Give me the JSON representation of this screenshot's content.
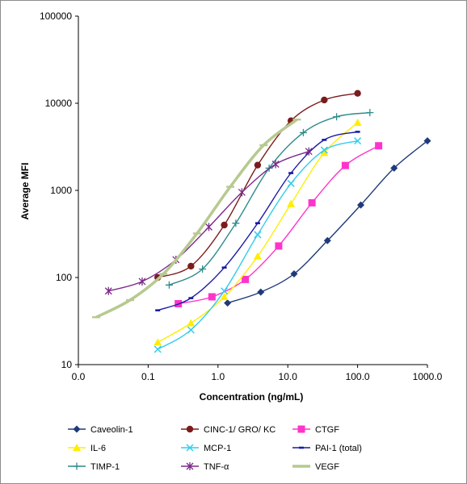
{
  "chart_data": {
    "type": "line",
    "xlabel": "Concentration (ng/mL)",
    "ylabel": "Average MFI",
    "x_scale": "log",
    "y_scale": "log",
    "xlim": [
      0.01,
      1000
    ],
    "ylim": [
      10,
      100000
    ],
    "x_ticks": [
      "0.0",
      "0.1",
      "1.0",
      "10.0",
      "100.0",
      "1000.0"
    ],
    "y_ticks": [
      "10",
      "100",
      "1000",
      "10000",
      "100000"
    ],
    "grid": false,
    "legend_placement": "bottom",
    "series": [
      {
        "name": "Caveolin-1",
        "color": "#1f3a7a",
        "marker": "diamond",
        "x": [
          1.37,
          4.1,
          12.3,
          37,
          111,
          333,
          1000
        ],
        "y": [
          51,
          68,
          110,
          265,
          680,
          1800,
          3700
        ]
      },
      {
        "name": "CINC-1/ GRO/ KC",
        "color": "#7b1c1c",
        "marker": "circle",
        "x": [
          0.137,
          0.41,
          1.23,
          3.7,
          11.1,
          33.3,
          100
        ],
        "y": [
          100,
          135,
          400,
          1950,
          6300,
          10900,
          13000
        ]
      },
      {
        "name": "CTGF",
        "color": "#ff33cc",
        "marker": "square",
        "x": [
          0.27,
          0.82,
          2.46,
          7.4,
          22.2,
          66.7,
          200
        ],
        "y": [
          50,
          60,
          95,
          230,
          720,
          1930,
          3250
        ]
      },
      {
        "name": "IL-6",
        "color": "#ffee00",
        "marker": "triangle",
        "x": [
          0.137,
          0.41,
          1.23,
          3.7,
          11.1,
          33.3,
          100
        ],
        "y": [
          18,
          30,
          60,
          175,
          700,
          2700,
          6000
        ]
      },
      {
        "name": "MCP-1",
        "color": "#33ccee",
        "marker": "x",
        "x": [
          0.137,
          0.41,
          1.23,
          3.7,
          11.1,
          33.3,
          100
        ],
        "y": [
          15,
          25,
          70,
          310,
          1200,
          2900,
          3700
        ]
      },
      {
        "name": "PAI-1 (total)",
        "color": "#1a1aa6",
        "marker": "dash",
        "x": [
          0.137,
          0.41,
          1.23,
          3.7,
          11.1,
          33.3,
          100
        ],
        "y": [
          42,
          58,
          130,
          420,
          1580,
          3800,
          4700
        ]
      },
      {
        "name": "TIMP-1",
        "color": "#2e8b8b",
        "marker": "plus",
        "x": [
          0.2,
          0.6,
          1.8,
          5.4,
          16.7,
          50,
          150
        ],
        "y": [
          82,
          125,
          420,
          1800,
          4600,
          7000,
          7800
        ]
      },
      {
        "name": "TNF-α",
        "color": "#7b2a8a",
        "marker": "asterisk",
        "x": [
          0.027,
          0.082,
          0.25,
          0.74,
          2.2,
          6.7,
          20
        ],
        "y": [
          70,
          90,
          160,
          380,
          950,
          2000,
          2800
        ]
      },
      {
        "name": "VEGF",
        "color": "#b7c98f",
        "marker": "bar",
        "x": [
          0.018,
          0.055,
          0.165,
          0.5,
          1.5,
          4.5,
          13.5
        ],
        "y": [
          35,
          55,
          110,
          320,
          1100,
          3300,
          6500
        ]
      }
    ]
  }
}
